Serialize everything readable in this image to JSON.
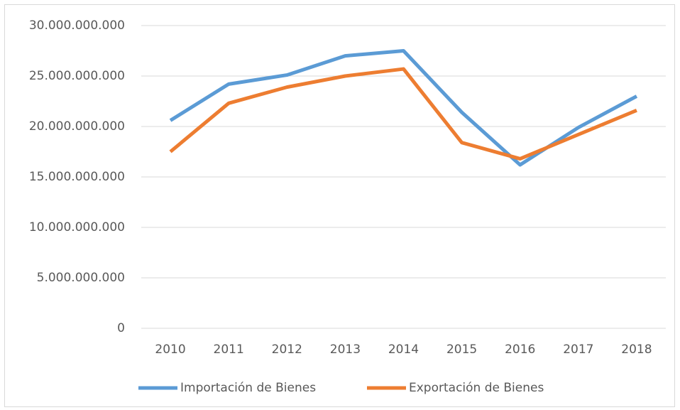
{
  "chart_data": {
    "type": "line",
    "categories": [
      "2010",
      "2011",
      "2012",
      "2013",
      "2014",
      "2015",
      "2016",
      "2017",
      "2018"
    ],
    "series": [
      {
        "name": "Importación de Bienes",
        "color": "#5b9bd5",
        "values": [
          20600000000,
          24200000000,
          25100000000,
          27000000000,
          27500000000,
          21400000000,
          16200000000,
          19900000000,
          23000000000
        ]
      },
      {
        "name": "Exportación de Bienes",
        "color": "#ed7d31",
        "values": [
          17500000000,
          22300000000,
          23900000000,
          25000000000,
          25700000000,
          18400000000,
          16800000000,
          19200000000,
          21600000000
        ]
      }
    ],
    "ylim": [
      0,
      30000000000
    ],
    "yticks": [
      0,
      {
        "value": 5000000000,
        "label": "5.000.000.000"
      },
      {
        "value": 10000000000,
        "label": "10.000.000.000"
      },
      {
        "value": 15000000000,
        "label": "15.000.000.000"
      },
      {
        "value": 20000000000,
        "label": "20.000.000.000"
      },
      {
        "value": 25000000000,
        "label": "25.000.000.000"
      },
      {
        "value": 30000000000,
        "label": "30.000.000.000"
      }
    ],
    "grid": true,
    "legend": "bottom"
  }
}
